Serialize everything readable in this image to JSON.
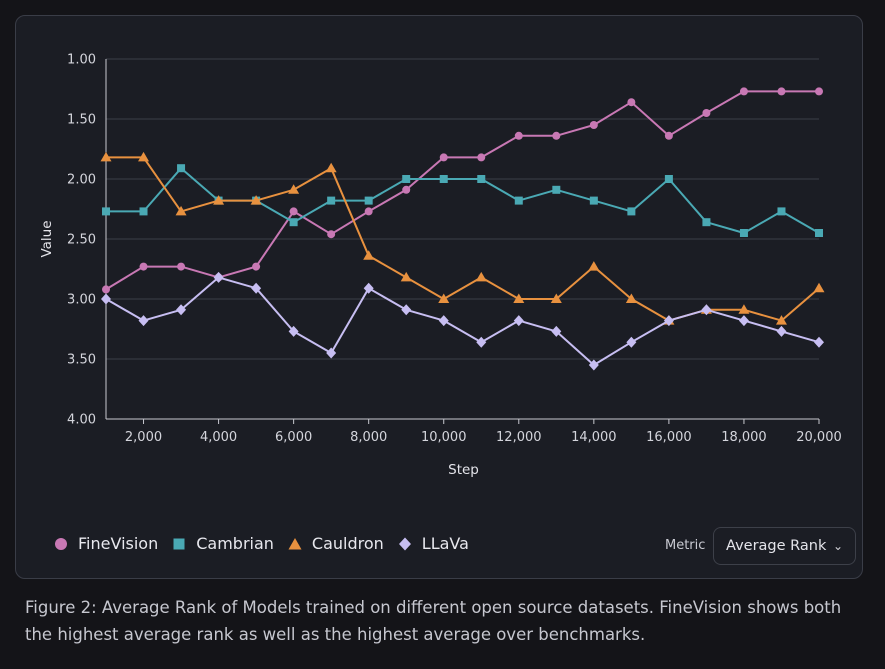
{
  "chart_data": {
    "type": "line",
    "title": "",
    "xlabel": "Step",
    "ylabel": "Value",
    "x": [
      1000,
      2000,
      3000,
      4000,
      5000,
      6000,
      7000,
      8000,
      9000,
      10000,
      11000,
      12000,
      13000,
      14000,
      15000,
      16000,
      17000,
      18000,
      19000,
      20000
    ],
    "xlim": [
      1000,
      20000
    ],
    "ylim": [
      1,
      4
    ],
    "y_inverted": true,
    "x_ticks": [
      2000,
      4000,
      6000,
      8000,
      10000,
      12000,
      14000,
      16000,
      18000,
      20000
    ],
    "x_tick_labels": [
      "2,000",
      "4,000",
      "6,000",
      "8,000",
      "10,000",
      "12,000",
      "14,000",
      "16,000",
      "18,000",
      "20,000"
    ],
    "y_ticks": [
      1,
      1.5,
      2,
      2.5,
      3,
      3.5,
      4
    ],
    "y_tick_labels": [
      "1.00",
      "1.50",
      "2.00",
      "2.50",
      "3.00",
      "3.50",
      "4.00"
    ],
    "grid": true,
    "legend_position": "bottom-left",
    "series": [
      {
        "name": "FineVision",
        "color": "#c878b4",
        "marker": "circle",
        "values": [
          2.92,
          2.73,
          2.73,
          2.82,
          2.73,
          2.27,
          2.46,
          2.27,
          2.09,
          1.82,
          1.82,
          1.64,
          1.64,
          1.55,
          1.36,
          1.64,
          1.45,
          1.27,
          1.27,
          1.27
        ]
      },
      {
        "name": "Cambrian",
        "color": "#4aa9b4",
        "marker": "square",
        "values": [
          2.27,
          2.27,
          1.91,
          2.18,
          2.18,
          2.36,
          2.18,
          2.18,
          2.0,
          2.0,
          2.0,
          2.18,
          2.09,
          2.18,
          2.27,
          2.0,
          2.36,
          2.45,
          2.27,
          2.45
        ]
      },
      {
        "name": "Cauldron",
        "color": "#e8913f",
        "marker": "triangle",
        "values": [
          1.82,
          1.82,
          2.27,
          2.18,
          2.18,
          2.09,
          1.91,
          2.64,
          2.82,
          3.0,
          2.82,
          3.0,
          3.0,
          2.73,
          3.0,
          3.18,
          3.09,
          3.09,
          3.18,
          2.91
        ]
      },
      {
        "name": "LLaVa",
        "color": "#c7bef2",
        "marker": "diamond",
        "values": [
          3.0,
          3.18,
          3.09,
          2.82,
          2.91,
          3.27,
          3.45,
          2.91,
          3.09,
          3.18,
          3.36,
          3.18,
          3.27,
          3.55,
          3.36,
          3.18,
          3.09,
          3.18,
          3.27,
          3.36
        ]
      }
    ]
  },
  "metric": {
    "label": "Metric",
    "selected": "Average Rank",
    "chevron_icon": "chevron-down-icon"
  },
  "caption": "Figure 2: Average Rank of Models trained on different open source datasets. FineVision shows both the highest average rank as well as the highest average over benchmarks."
}
